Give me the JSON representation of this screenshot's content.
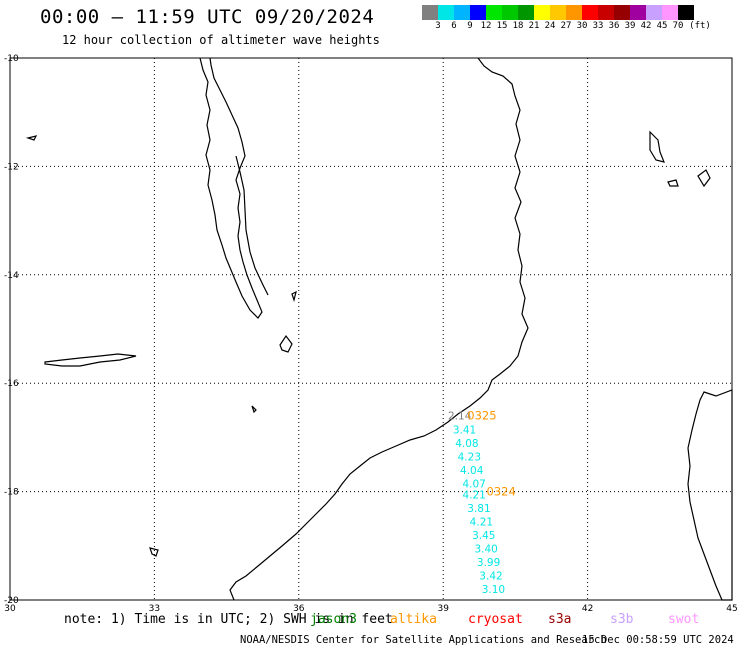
{
  "header": {
    "title": "00:00 – 11:59 UTC 09/20/2024",
    "subtitle": "12 hour collection of altimeter wave heights"
  },
  "legend": {
    "unit": "(ft)",
    "colors": [
      "#808080",
      "#00e6e6",
      "#00b4ff",
      "#0000ff",
      "#00e600",
      "#00c800",
      "#009600",
      "#ffff00",
      "#ffc800",
      "#ff9600",
      "#ff0000",
      "#c80000",
      "#960000",
      "#a000a0",
      "#c8a0ff",
      "#ff96ff",
      "#000000"
    ],
    "ticks": [
      "3",
      "6",
      "9",
      "12",
      "15",
      "18",
      "21",
      "24",
      "27",
      "30",
      "33",
      "36",
      "39",
      "42",
      "45",
      "70"
    ]
  },
  "map": {
    "lon_range": [
      30,
      45
    ],
    "lat_range": [
      -20,
      -10
    ],
    "lon_ticks": [
      "30",
      "33",
      "36",
      "39",
      "42",
      "45"
    ],
    "lat_ticks": [
      "-10",
      "-12",
      "-14",
      "-16",
      "-18",
      "-20"
    ],
    "wave_heights": [
      {
        "lon": 39.1,
        "lat": -16.6,
        "value": "2.14",
        "color": "#808080"
      },
      {
        "lon": 39.2,
        "lat": -16.85,
        "value": "3.41",
        "color": "#00e6e6"
      },
      {
        "lon": 39.25,
        "lat": -17.1,
        "value": "4.08",
        "color": "#00e6e6"
      },
      {
        "lon": 39.3,
        "lat": -17.35,
        "value": "4.23",
        "color": "#00e6e6"
      },
      {
        "lon": 39.35,
        "lat": -17.6,
        "value": "4.04",
        "color": "#00e6e6"
      },
      {
        "lon": 39.4,
        "lat": -17.85,
        "value": "4.07",
        "color": "#00e6e6"
      },
      {
        "lon": 39.4,
        "lat": -18.05,
        "value": "4.21",
        "color": "#00e6e6"
      },
      {
        "lon": 39.5,
        "lat": -18.3,
        "value": "3.81",
        "color": "#00e6e6"
      },
      {
        "lon": 39.55,
        "lat": -18.55,
        "value": "4.21",
        "color": "#00e6e6"
      },
      {
        "lon": 39.6,
        "lat": -18.8,
        "value": "3.45",
        "color": "#00e6e6"
      },
      {
        "lon": 39.65,
        "lat": -19.05,
        "value": "3.40",
        "color": "#00e6e6"
      },
      {
        "lon": 39.7,
        "lat": -19.3,
        "value": "3.99",
        "color": "#00e6e6"
      },
      {
        "lon": 39.75,
        "lat": -19.55,
        "value": "3.42",
        "color": "#00e6e6"
      },
      {
        "lon": 39.8,
        "lat": -19.8,
        "value": "3.10",
        "color": "#00e6e6"
      }
    ],
    "pass_ids": [
      {
        "lon": 39.5,
        "lat": -16.6,
        "label": "0325",
        "color": "#ff9600"
      },
      {
        "lon": 39.9,
        "lat": -18.0,
        "label": "0324",
        "color": "#ff9600"
      }
    ]
  },
  "footer": {
    "note": "note: 1) Time is in UTC; 2) SWH is in feet",
    "satellites": [
      {
        "name": "jason3",
        "color": "#008000"
      },
      {
        "name": "altika",
        "color": "#ff9600"
      },
      {
        "name": "cryosat",
        "color": "#ff0000"
      },
      {
        "name": "s3a",
        "color": "#960000"
      },
      {
        "name": "s3b",
        "color": "#c8a0ff"
      },
      {
        "name": "swot",
        "color": "#ff96ff"
      }
    ],
    "credit": "NOAA/NESDIS Center for Satellite Applications and Research",
    "timestamp": "15 Dec 00:58:59 UTC 2024"
  }
}
